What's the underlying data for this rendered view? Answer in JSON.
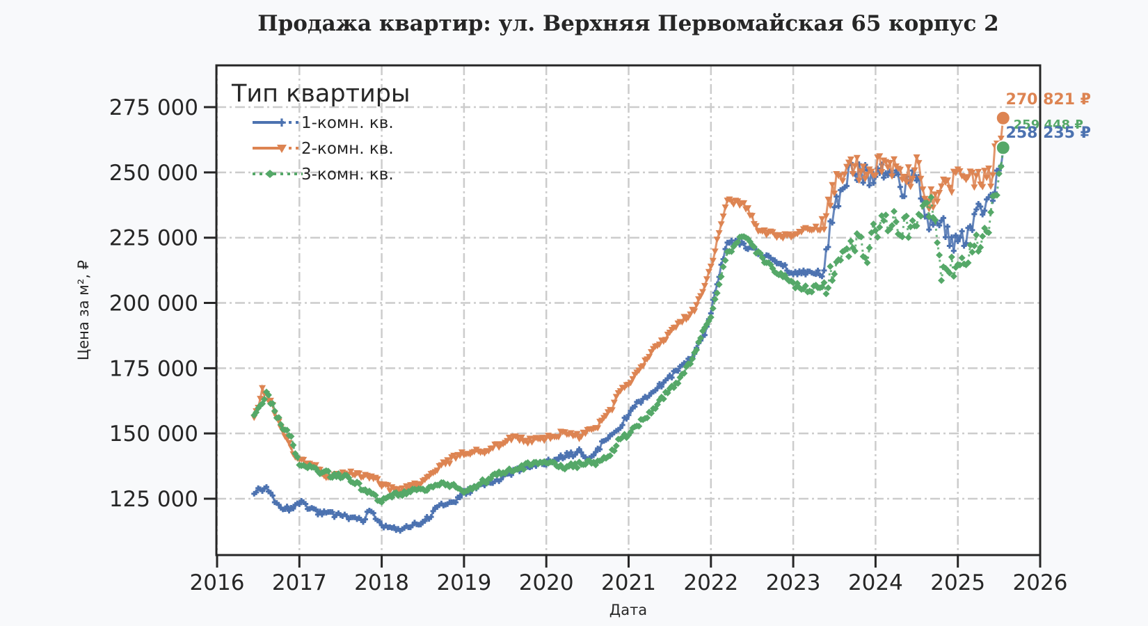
{
  "chart_data": {
    "type": "line",
    "title": "Продажа квартир: ул. Верхняя Первомайская 65 корпус 2",
    "xlabel": "Дата",
    "ylabel": "Цена за м², ₽",
    "xlim": [
      2016,
      2026
    ],
    "ylim": [
      103400,
      291000
    ],
    "x_ticks": [
      "2016",
      "2017",
      "2018",
      "2019",
      "2020",
      "2021",
      "2022",
      "2023",
      "2024",
      "2025",
      "2026"
    ],
    "y_ticks": [
      125000,
      150000,
      175000,
      200000,
      225000,
      250000,
      275000
    ],
    "y_tick_labels": [
      "125 000",
      "150 000",
      "175 000",
      "200 000",
      "225 000",
      "250 000",
      "275 000"
    ],
    "grid": true,
    "legend": {
      "title": "Тип квартиры",
      "position": "upper left"
    },
    "series": [
      {
        "name": "1-комн. кв.",
        "color": "#4c72b0",
        "marker": "plus",
        "x": [
          2016.45,
          2016.6,
          2016.75,
          2016.9,
          2017.0,
          2017.2,
          2017.4,
          2017.6,
          2017.8,
          2017.85,
          2018.0,
          2018.2,
          2018.4,
          2018.5,
          2018.7,
          2018.9,
          2019.0,
          2019.2,
          2019.4,
          2019.6,
          2019.8,
          2020.0,
          2020.2,
          2020.4,
          2020.5,
          2020.7,
          2020.9,
          2021.0,
          2021.2,
          2021.4,
          2021.6,
          2021.8,
          2021.9,
          2022.0,
          2022.2,
          2022.4,
          2022.6,
          2022.8,
          2023.0,
          2023.2,
          2023.35,
          2023.5,
          2023.7,
          2023.9,
          2024.0,
          2024.2,
          2024.4,
          2024.5,
          2024.6,
          2024.7,
          2024.9,
          2025.0,
          2025.2,
          2025.4,
          2025.55
        ],
        "values": [
          128000,
          129000,
          122000,
          121000,
          124000,
          120000,
          119000,
          118000,
          117000,
          121000,
          115000,
          113000,
          115000,
          116000,
          122000,
          124000,
          127000,
          130000,
          132000,
          135000,
          138000,
          139000,
          141000,
          143000,
          139000,
          147000,
          152000,
          158000,
          164000,
          169000,
          174000,
          181000,
          186000,
          197000,
          224000,
          222000,
          219000,
          216000,
          211000,
          212000,
          211000,
          238000,
          252000,
          248000,
          251000,
          247000,
          244000,
          249000,
          230000,
          232000,
          226000,
          221000,
          232000,
          240000,
          258235
        ]
      },
      {
        "name": "2-комн. кв.",
        "color": "#dd8452",
        "marker": "triangle-down",
        "x": [
          2016.45,
          2016.55,
          2016.6,
          2016.75,
          2016.9,
          2017.0,
          2017.2,
          2017.3,
          2017.5,
          2017.7,
          2017.9,
          2018.0,
          2018.2,
          2018.5,
          2018.7,
          2018.9,
          2019.0,
          2019.2,
          2019.4,
          2019.6,
          2019.8,
          2020.0,
          2020.2,
          2020.4,
          2020.6,
          2020.8,
          2020.9,
          2021.0,
          2021.2,
          2021.4,
          2021.6,
          2021.8,
          2021.9,
          2022.0,
          2022.2,
          2022.4,
          2022.6,
          2022.8,
          2023.0,
          2023.2,
          2023.35,
          2023.5,
          2023.7,
          2023.9,
          2024.0,
          2024.2,
          2024.4,
          2024.5,
          2024.6,
          2024.7,
          2024.9,
          2025.0,
          2025.2,
          2025.4,
          2025.55
        ],
        "values": [
          155000,
          167000,
          165000,
          155000,
          144000,
          140000,
          138000,
          133000,
          135000,
          134000,
          133000,
          130000,
          128000,
          131000,
          137000,
          141000,
          142000,
          143000,
          145000,
          149000,
          147000,
          148000,
          150000,
          149000,
          152000,
          160000,
          166000,
          169000,
          178000,
          185000,
          192000,
          197000,
          205000,
          214000,
          239000,
          238000,
          227000,
          226000,
          225000,
          229000,
          228000,
          244000,
          252000,
          250000,
          253000,
          251000,
          248000,
          252000,
          241000,
          240000,
          245000,
          252000,
          248000,
          249000,
          270821
        ]
      },
      {
        "name": "3-комн. кв.",
        "color": "#55a868",
        "marker": "diamond",
        "x": [
          2016.45,
          2016.55,
          2016.6,
          2016.75,
          2016.9,
          2017.0,
          2017.2,
          2017.4,
          2017.6,
          2017.8,
          2018.0,
          2018.2,
          2018.4,
          2018.6,
          2018.8,
          2019.0,
          2019.2,
          2019.4,
          2019.6,
          2019.8,
          2020.0,
          2020.2,
          2020.4,
          2020.6,
          2020.8,
          2020.9,
          2021.0,
          2021.2,
          2021.4,
          2021.6,
          2021.8,
          2021.9,
          2022.0,
          2022.2,
          2022.4,
          2022.6,
          2022.8,
          2023.0,
          2023.2,
          2023.4,
          2023.6,
          2023.8,
          2023.9,
          2024.0,
          2024.2,
          2024.4,
          2024.6,
          2024.7,
          2024.8,
          2025.0,
          2025.2,
          2025.4,
          2025.55
        ],
        "values": [
          157000,
          162000,
          166000,
          155000,
          148000,
          138000,
          136000,
          134000,
          133000,
          128000,
          124000,
          127000,
          128000,
          129000,
          131000,
          128000,
          131000,
          134000,
          136000,
          138000,
          139000,
          137000,
          138000,
          139000,
          143000,
          148000,
          150000,
          156000,
          163000,
          170000,
          180000,
          190000,
          195000,
          219000,
          226000,
          218000,
          212000,
          207000,
          205000,
          207000,
          220000,
          224000,
          218000,
          229000,
          231000,
          229000,
          234000,
          237000,
          210000,
          215000,
          221000,
          232000,
          259448
        ]
      }
    ],
    "annotations": [
      {
        "text": "270 821 ₽",
        "x": 2025.55,
        "y": 270821,
        "color": "#dd8452"
      },
      {
        "text": "259 448 ₽",
        "x": 2025.55,
        "y": 259448,
        "color": "#55a868"
      },
      {
        "text": "258 235 ₽",
        "x": 2025.55,
        "y": 258235,
        "color": "#4c72b0"
      }
    ]
  }
}
